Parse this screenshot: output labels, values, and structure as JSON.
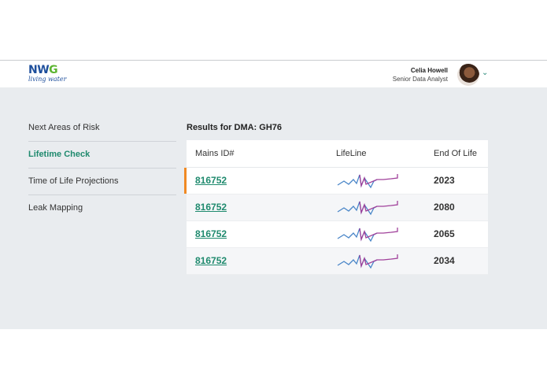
{
  "brand": {
    "name_left": "NW",
    "name_right": "G",
    "tagline": "living water"
  },
  "user": {
    "name": "Celia Howell",
    "role": "Senior Data Analyst",
    "avatar_icon": "user-avatar",
    "menu_icon": "chevron-down-icon"
  },
  "nav": {
    "items": [
      {
        "label": "Next Areas of Risk",
        "active": false
      },
      {
        "label": "Lifetime Check",
        "active": true
      },
      {
        "label": "Time of Life Projections",
        "active": false
      },
      {
        "label": "Leak Mapping",
        "active": false
      }
    ]
  },
  "results": {
    "title": "Results for DMA: GH76",
    "columns": [
      "Mains ID#",
      "LifeLine",
      "End Of Life"
    ],
    "rows": [
      {
        "id": "816752",
        "eol": "2023",
        "selected": true
      },
      {
        "id": "816752",
        "eol": "2080",
        "selected": false
      },
      {
        "id": "816752",
        "eol": "2065",
        "selected": false
      },
      {
        "id": "816752",
        "eol": "2034",
        "selected": false
      }
    ]
  },
  "colors": {
    "accent": "#1f8a6e",
    "selected_marker": "#f08a24",
    "spark_blue": "#4a86c8",
    "spark_purple": "#a0409a"
  }
}
